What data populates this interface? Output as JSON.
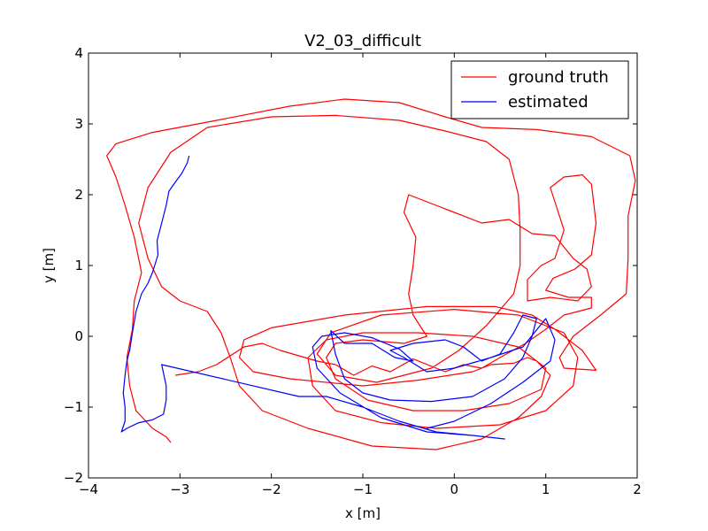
{
  "chart_data": {
    "type": "line",
    "title": "V2_03_difficult",
    "xlabel": "x [m]",
    "ylabel": "y [m]",
    "xlim": [
      -4,
      2
    ],
    "ylim": [
      -2,
      4
    ],
    "x_ticks": [
      "−4",
      "−3",
      "−2",
      "−1",
      "0",
      "1",
      "2"
    ],
    "y_ticks": [
      "−2",
      "−1",
      "0",
      "1",
      "2",
      "3",
      "4"
    ],
    "grid": false,
    "legend_position": "top-right",
    "series": [
      {
        "name": "ground truth",
        "color": "#ff0000",
        "points": [
          [
            -3.1,
            -1.5
          ],
          [
            -3.15,
            -1.42
          ],
          [
            -3.3,
            -1.3
          ],
          [
            -3.48,
            -1.05
          ],
          [
            -3.55,
            -0.7
          ],
          [
            -3.58,
            -0.3
          ],
          [
            -3.52,
            0.1
          ],
          [
            -3.5,
            0.5
          ],
          [
            -3.42,
            0.9
          ],
          [
            -3.5,
            1.4
          ],
          [
            -3.6,
            1.85
          ],
          [
            -3.7,
            2.25
          ],
          [
            -3.8,
            2.55
          ],
          [
            -3.7,
            2.72
          ],
          [
            -3.3,
            2.88
          ],
          [
            -2.6,
            3.05
          ],
          [
            -1.8,
            3.25
          ],
          [
            -1.2,
            3.35
          ],
          [
            -0.6,
            3.3
          ],
          [
            -0.1,
            3.1
          ],
          [
            0.3,
            2.95
          ],
          [
            0.9,
            2.92
          ],
          [
            1.5,
            2.82
          ],
          [
            1.92,
            2.55
          ],
          [
            1.98,
            2.2
          ],
          [
            1.9,
            1.7
          ],
          [
            1.9,
            1.1
          ],
          [
            1.88,
            0.6
          ],
          [
            1.6,
            0.3
          ],
          [
            1.3,
            0.0
          ],
          [
            1.15,
            -0.3
          ],
          [
            1.2,
            -0.45
          ],
          [
            1.55,
            -0.48
          ],
          [
            1.4,
            -0.2
          ],
          [
            1.1,
            0.1
          ],
          [
            0.85,
            0.3
          ],
          [
            0.45,
            0.42
          ],
          [
            -0.3,
            0.42
          ],
          [
            -1.2,
            0.3
          ],
          [
            -2.0,
            0.12
          ],
          [
            -2.3,
            -0.05
          ],
          [
            -2.35,
            -0.3
          ],
          [
            -2.2,
            -0.5
          ],
          [
            -1.8,
            -0.6
          ],
          [
            -1.0,
            -0.7
          ],
          [
            -0.4,
            -0.62
          ],
          [
            0.2,
            -0.5
          ],
          [
            0.4,
            -0.4
          ],
          [
            0.65,
            -0.38
          ],
          [
            0.8,
            -0.3
          ],
          [
            0.9,
            -0.35
          ],
          [
            1.05,
            -0.55
          ],
          [
            0.95,
            -0.85
          ],
          [
            0.7,
            -1.15
          ],
          [
            0.3,
            -1.45
          ],
          [
            -0.2,
            -1.6
          ],
          [
            -0.9,
            -1.55
          ],
          [
            -1.6,
            -1.3
          ],
          [
            -2.1,
            -1.05
          ],
          [
            -2.35,
            -0.7
          ],
          [
            -2.45,
            -0.3
          ],
          [
            -2.55,
            0.05
          ],
          [
            -2.7,
            0.35
          ],
          [
            -3.0,
            0.5
          ],
          [
            -3.2,
            0.7
          ],
          [
            -3.35,
            1.1
          ],
          [
            -3.45,
            1.6
          ],
          [
            -3.35,
            2.1
          ],
          [
            -3.1,
            2.6
          ],
          [
            -2.7,
            2.95
          ],
          [
            -2.0,
            3.1
          ],
          [
            -1.3,
            3.12
          ],
          [
            -0.6,
            3.05
          ],
          [
            -0.1,
            2.9
          ],
          [
            0.35,
            2.75
          ],
          [
            0.6,
            2.5
          ],
          [
            0.7,
            2.0
          ],
          [
            0.72,
            1.5
          ],
          [
            0.72,
            1.0
          ],
          [
            0.65,
            0.6
          ],
          [
            0.35,
            0.15
          ],
          [
            0.05,
            -0.2
          ],
          [
            -0.25,
            -0.45
          ],
          [
            -0.85,
            -0.65
          ],
          [
            -1.3,
            -0.55
          ],
          [
            -1.5,
            -0.25
          ],
          [
            -1.35,
            0.05
          ],
          [
            -0.8,
            0.3
          ],
          [
            0.0,
            0.38
          ],
          [
            0.7,
            0.3
          ],
          [
            1.2,
            0.05
          ],
          [
            1.35,
            -0.3
          ],
          [
            1.3,
            -0.7
          ],
          [
            1.0,
            -1.05
          ],
          [
            0.5,
            -1.25
          ],
          [
            -0.2,
            -1.3
          ],
          [
            -0.8,
            -1.22
          ],
          [
            -1.3,
            -1.05
          ],
          [
            -1.55,
            -0.7
          ],
          [
            -1.6,
            -0.3
          ],
          [
            -1.4,
            -0.05
          ],
          [
            -1.0,
            0.05
          ],
          [
            -0.4,
            0.05
          ],
          [
            0.2,
            0.0
          ],
          [
            0.7,
            -0.15
          ],
          [
            1.0,
            -0.45
          ],
          [
            0.95,
            -0.75
          ],
          [
            0.6,
            -0.95
          ],
          [
            0.1,
            -1.05
          ],
          [
            -0.45,
            -1.05
          ],
          [
            -0.95,
            -0.9
          ],
          [
            -1.3,
            -0.6
          ],
          [
            -1.4,
            -0.3
          ],
          [
            -1.3,
            -0.1
          ],
          [
            -1.0,
            -0.05
          ],
          [
            -0.55,
            -0.1
          ],
          [
            -0.3,
            0.0
          ],
          [
            -0.45,
            0.3
          ],
          [
            -0.5,
            0.6
          ],
          [
            -0.45,
            1.0
          ],
          [
            -0.42,
            1.4
          ],
          [
            -0.55,
            1.75
          ],
          [
            -0.5,
            2.0
          ],
          [
            -0.2,
            1.85
          ],
          [
            0.3,
            1.6
          ],
          [
            0.6,
            1.65
          ],
          [
            0.85,
            1.45
          ],
          [
            1.1,
            1.42
          ],
          [
            1.3,
            1.1
          ],
          [
            1.45,
            0.95
          ],
          [
            1.5,
            0.7
          ],
          [
            1.35,
            0.5
          ],
          [
            1.05,
            0.55
          ],
          [
            0.8,
            0.5
          ],
          [
            0.8,
            0.8
          ],
          [
            0.95,
            1.0
          ],
          [
            1.1,
            1.1
          ],
          [
            1.2,
            1.5
          ],
          [
            1.1,
            1.9
          ],
          [
            1.05,
            2.1
          ],
          [
            1.2,
            2.25
          ],
          [
            1.4,
            2.28
          ],
          [
            1.5,
            2.15
          ],
          [
            1.55,
            1.6
          ],
          [
            1.5,
            1.15
          ],
          [
            1.32,
            0.95
          ],
          [
            1.08,
            0.82
          ],
          [
            1.0,
            0.65
          ],
          [
            1.25,
            0.55
          ],
          [
            1.5,
            0.55
          ],
          [
            1.5,
            0.4
          ],
          [
            1.2,
            0.3
          ],
          [
            1.0,
            0.1
          ],
          [
            0.78,
            -0.1
          ],
          [
            0.5,
            -0.3
          ],
          [
            0.3,
            -0.45
          ],
          [
            0.1,
            -0.4
          ],
          [
            -0.1,
            -0.5
          ],
          [
            -0.45,
            -0.32
          ],
          [
            -0.7,
            -0.5
          ],
          [
            -0.9,
            -0.42
          ],
          [
            -1.1,
            -0.55
          ],
          [
            -1.3,
            -0.4
          ],
          [
            -1.5,
            -0.35
          ],
          [
            -1.9,
            -0.2
          ],
          [
            -2.1,
            -0.1
          ],
          [
            -2.3,
            -0.15
          ],
          [
            -2.6,
            -0.4
          ],
          [
            -2.8,
            -0.5
          ],
          [
            -3.05,
            -0.55
          ]
        ]
      },
      {
        "name": "estimated",
        "color": "#0000ff",
        "points": [
          [
            -2.9,
            2.55
          ],
          [
            -2.92,
            2.45
          ],
          [
            -2.98,
            2.3
          ],
          [
            -3.05,
            2.18
          ],
          [
            -3.12,
            2.05
          ],
          [
            -3.15,
            1.85
          ],
          [
            -3.2,
            1.6
          ],
          [
            -3.25,
            1.35
          ],
          [
            -3.24,
            1.15
          ],
          [
            -3.3,
            0.9
          ],
          [
            -3.35,
            0.75
          ],
          [
            -3.42,
            0.6
          ],
          [
            -3.48,
            0.35
          ],
          [
            -3.52,
            0.05
          ],
          [
            -3.55,
            -0.2
          ],
          [
            -3.58,
            -0.35
          ],
          [
            -3.6,
            -0.55
          ],
          [
            -3.62,
            -0.8
          ],
          [
            -3.6,
            -1.0
          ],
          [
            -3.6,
            -1.2
          ],
          [
            -3.64,
            -1.35
          ],
          [
            -3.58,
            -1.3
          ],
          [
            -3.45,
            -1.22
          ],
          [
            -3.3,
            -1.18
          ],
          [
            -3.18,
            -1.1
          ],
          [
            -3.15,
            -0.9
          ],
          [
            -3.15,
            -0.7
          ],
          [
            -3.2,
            -0.4
          ],
          [
            -1.7,
            -0.85
          ],
          [
            -1.4,
            -0.85
          ],
          [
            -1.0,
            -1.0
          ],
          [
            -0.6,
            -1.2
          ],
          [
            -0.2,
            -1.35
          ],
          [
            0.2,
            -1.4
          ],
          [
            0.55,
            -1.45
          ],
          [
            0.2,
            -1.4
          ],
          [
            -0.3,
            -1.35
          ],
          [
            -0.8,
            -1.15
          ],
          [
            -1.25,
            -0.8
          ],
          [
            -1.5,
            -0.45
          ],
          [
            -1.55,
            -0.15
          ],
          [
            -1.45,
            0.0
          ],
          [
            -1.2,
            0.05
          ],
          [
            -0.9,
            -0.02
          ],
          [
            -0.6,
            -0.18
          ],
          [
            -0.45,
            -0.35
          ],
          [
            -0.65,
            -0.3
          ],
          [
            -0.9,
            -0.1
          ],
          [
            -1.2,
            -0.1
          ],
          [
            -1.35,
            0.08
          ],
          [
            -1.3,
            -0.25
          ],
          [
            -1.2,
            -0.6
          ],
          [
            -1.0,
            -0.8
          ],
          [
            -0.7,
            -0.9
          ],
          [
            -0.25,
            -0.92
          ],
          [
            0.2,
            -0.85
          ],
          [
            0.55,
            -0.6
          ],
          [
            0.75,
            -0.3
          ],
          [
            0.85,
            0.0
          ],
          [
            0.9,
            0.25
          ],
          [
            0.75,
            0.3
          ],
          [
            0.65,
            0.05
          ],
          [
            0.5,
            -0.25
          ],
          [
            0.3,
            -0.35
          ],
          [
            0.1,
            -0.15
          ],
          [
            -0.1,
            -0.05
          ],
          [
            -0.45,
            -0.1
          ],
          [
            -0.7,
            -0.2
          ],
          [
            -0.55,
            -0.3
          ],
          [
            -0.3,
            -0.5
          ],
          [
            0.0,
            -0.45
          ],
          [
            0.4,
            -0.3
          ],
          [
            0.75,
            -0.15
          ],
          [
            1.0,
            0.25
          ],
          [
            1.1,
            -0.05
          ],
          [
            1.05,
            -0.35
          ],
          [
            0.75,
            -0.65
          ],
          [
            0.4,
            -0.95
          ],
          [
            0.0,
            -1.2
          ],
          [
            -0.3,
            -1.3
          ]
        ]
      }
    ]
  }
}
